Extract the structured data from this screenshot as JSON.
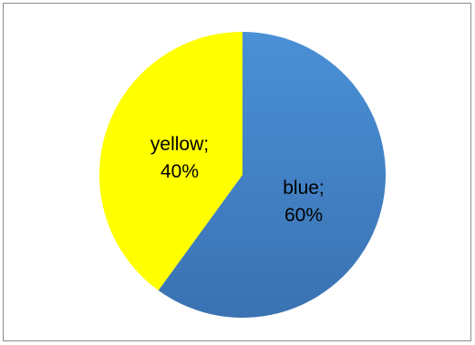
{
  "chart_data": {
    "type": "pie",
    "title": "",
    "slices": [
      {
        "name": "blue",
        "value": 60,
        "label_name": "blue;",
        "label_value": "60%",
        "color": "#4a86c8"
      },
      {
        "name": "yellow",
        "value": 40,
        "label_name": "yellow;",
        "label_value": "40%",
        "color": "#ffff00"
      }
    ],
    "legend": "none",
    "start_angle": "12 o'clock",
    "direction": "clockwise"
  }
}
